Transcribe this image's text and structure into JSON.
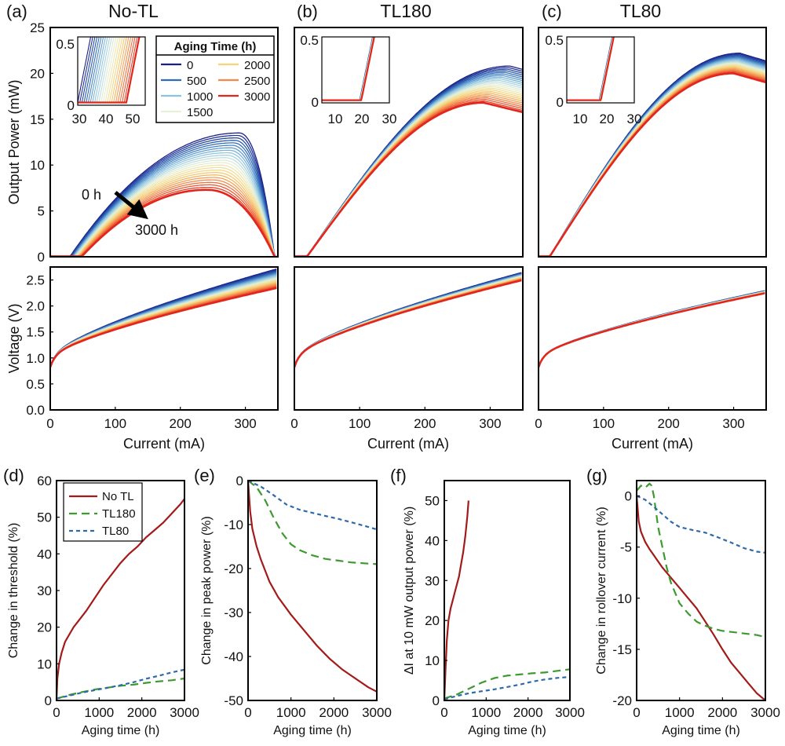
{
  "chart_data": [
    {
      "panel": "(a)",
      "title": "No-TL",
      "type": "line",
      "xlabel": "",
      "ylabel": "Output Power (mW)",
      "xlim": [
        0,
        350
      ],
      "ylim": [
        0,
        25
      ],
      "yticks": [
        0,
        5,
        10,
        15,
        20,
        25
      ],
      "aging_times_h": [
        0,
        500,
        1000,
        1500,
        2000,
        2500,
        3000
      ],
      "series_model": {
        "threshold_mA": [
          30,
          48
        ],
        "peak_mW": [
          13.5,
          7.3
        ],
        "peak_current_mA": [
          290,
          240
        ],
        "rolloff_to_zero_mA": 345
      },
      "annotations": [
        "0 h",
        "3000 h"
      ],
      "legend": {
        "title": "Aging Time (h)",
        "entries": [
          "0",
          "500",
          "1000",
          "1500",
          "2000",
          "2500",
          "3000"
        ],
        "placement": "top-right"
      },
      "inset": {
        "xlim": [
          30,
          55
        ],
        "ylim": [
          0,
          0.5
        ],
        "xticks": [
          30,
          40,
          50
        ],
        "yticks": [
          0,
          0.5
        ]
      }
    },
    {
      "panel": "(b)",
      "title": "TL180",
      "type": "line",
      "xlim": [
        0,
        350
      ],
      "ylim": [
        0,
        25
      ],
      "series_model": {
        "threshold_mA": [
          19,
          19
        ],
        "peak_mW": [
          20.8,
          16.8
        ],
        "peak_current_mA": [
          330,
          290
        ]
      },
      "inset": {
        "xlim": [
          5,
          30
        ],
        "ylim": [
          0,
          0.5
        ],
        "xticks": [
          10,
          20,
          30
        ],
        "yticks": [
          0,
          0.5
        ]
      }
    },
    {
      "panel": "(c)",
      "title": "TL80",
      "type": "line",
      "xlim": [
        0,
        350
      ],
      "ylim": [
        0,
        25
      ],
      "series_model": {
        "threshold_mA": [
          17,
          17
        ],
        "peak_mW": [
          22.2,
          20.0
        ],
        "peak_current_mA": [
          310,
          300
        ]
      },
      "inset": {
        "xlim": [
          5,
          30
        ],
        "ylim": [
          0,
          0.5
        ],
        "xticks": [
          10,
          20,
          30
        ],
        "yticks": [
          0,
          0.5
        ]
      }
    },
    {
      "panel": "(a) lower",
      "type": "line",
      "xlabel": "Current (mA)",
      "ylabel": "Voltage (V)",
      "xlim": [
        0,
        350
      ],
      "ylim": [
        0,
        2.75
      ],
      "xticks": [
        0,
        100,
        200,
        300
      ],
      "yticks": [
        0,
        0.5,
        1,
        1.5,
        2,
        2.5
      ],
      "ytick_labels": [
        "0.0",
        "0.5",
        "1.0",
        "1.5",
        "2.0",
        "2.5"
      ],
      "series_model": {
        "v_at_350mA": [
          2.72,
          2.35
        ]
      }
    },
    {
      "panel": "(b) lower",
      "type": "line",
      "xlabel": "Current (mA)",
      "xlim": [
        0,
        350
      ],
      "ylim": [
        0,
        2.75
      ],
      "xticks": [
        0,
        100,
        200,
        300
      ],
      "series_model": {
        "v_at_350mA": [
          2.65,
          2.5
        ]
      }
    },
    {
      "panel": "(c) lower",
      "type": "line",
      "xlabel": "Current (mA)",
      "xlim": [
        0,
        350
      ],
      "ylim": [
        0,
        2.75
      ],
      "xticks": [
        0,
        100,
        200,
        300
      ],
      "series_model": {
        "v_at_350mA": [
          2.3,
          2.25
        ]
      }
    },
    {
      "panel": "(d)",
      "type": "line",
      "xlabel": "Aging time (h)",
      "ylabel": "Change in threshold (%)",
      "xlim": [
        0,
        3000
      ],
      "ylim": [
        0,
        60
      ],
      "xticks": [
        0,
        1000,
        2000,
        3000
      ],
      "yticks": [
        0,
        10,
        20,
        30,
        40,
        50,
        60
      ],
      "legend_placement": "top-left",
      "series": [
        {
          "name": "No TL",
          "color": "#a31a1a",
          "style": "solid",
          "x": [
            0,
            20,
            60,
            120,
            200,
            300,
            400,
            500,
            700,
            900,
            1100,
            1300,
            1500,
            1700,
            1900,
            2100,
            2300,
            2500,
            2700,
            2900,
            3000
          ],
          "y": [
            0,
            6,
            10,
            13,
            16,
            18,
            20,
            21.5,
            24.5,
            28,
            31.5,
            34.5,
            37.5,
            40,
            42,
            44.5,
            46.5,
            48.5,
            51,
            53.5,
            55
          ]
        },
        {
          "name": "TL180",
          "color": "#3c9a2e",
          "style": "dash",
          "x": [
            0,
            300,
            600,
            900,
            1200,
            1500,
            1800,
            2100,
            2400,
            2700,
            3000
          ],
          "y": [
            0.5,
            1.5,
            2.3,
            3,
            3.5,
            4,
            4.3,
            4.8,
            5.2,
            5.5,
            6
          ]
        },
        {
          "name": "TL80",
          "color": "#2e6aa8",
          "style": "short-dash",
          "x": [
            0,
            300,
            600,
            900,
            1200,
            1500,
            1800,
            2100,
            2400,
            2700,
            3000
          ],
          "y": [
            0.5,
            1.2,
            2,
            2.8,
            3.6,
            4.3,
            5,
            5.8,
            6.6,
            7.6,
            8.5
          ]
        }
      ]
    },
    {
      "panel": "(e)",
      "type": "line",
      "xlabel": "Aging time (h)",
      "ylabel": "Change in peak power (%)",
      "xlim": [
        0,
        3000
      ],
      "ylim": [
        -50,
        0
      ],
      "xticks": [
        0,
        1000,
        2000,
        3000
      ],
      "yticks": [
        0,
        -10,
        -20,
        -30,
        -40,
        -50
      ],
      "series": [
        {
          "name": "No TL",
          "color": "#a31a1a",
          "style": "solid",
          "x": [
            0,
            50,
            100,
            200,
            300,
            500,
            700,
            1000,
            1300,
            1600,
            1900,
            2200,
            2500,
            2800,
            3000
          ],
          "y": [
            0,
            -7,
            -11,
            -15,
            -18,
            -23,
            -26.5,
            -30.5,
            -34,
            -37.5,
            -40.5,
            -43,
            -45,
            -47,
            -48
          ]
        },
        {
          "name": "TL180",
          "color": "#3c9a2e",
          "style": "dash",
          "x": [
            0,
            200,
            400,
            600,
            800,
            1000,
            1200,
            1500,
            1800,
            2100,
            2400,
            2700,
            3000
          ],
          "y": [
            0,
            -1.5,
            -4.5,
            -8.5,
            -12,
            -14.5,
            -15.8,
            -17,
            -17.8,
            -18.2,
            -18.6,
            -18.8,
            -19
          ]
        },
        {
          "name": "TL80",
          "color": "#2e6aa8",
          "style": "short-dash",
          "x": [
            0,
            300,
            600,
            900,
            1200,
            1500,
            1800,
            2100,
            2400,
            2700,
            3000
          ],
          "y": [
            0,
            -1.5,
            -3.5,
            -5.5,
            -6.5,
            -7.2,
            -8,
            -8.8,
            -9.6,
            -10.3,
            -11
          ]
        }
      ]
    },
    {
      "panel": "(f)",
      "type": "line",
      "xlabel": "Aging time (h)",
      "ylabel": "ΔI at 10 mW output power (%)",
      "xlim": [
        0,
        3000
      ],
      "ylim": [
        0,
        55
      ],
      "xticks": [
        0,
        1000,
        2000,
        3000
      ],
      "yticks": [
        0,
        10,
        20,
        30,
        40,
        50
      ],
      "series": [
        {
          "name": "No TL",
          "color": "#a31a1a",
          "style": "solid",
          "x": [
            0,
            30,
            60,
            100,
            150,
            200,
            250,
            300,
            350,
            400,
            450,
            500,
            550,
            580
          ],
          "y": [
            0,
            8,
            15,
            20,
            23,
            25,
            27,
            29,
            31,
            34,
            37,
            41,
            46,
            50
          ]
        },
        {
          "name": "TL180",
          "color": "#3c9a2e",
          "style": "dash",
          "x": [
            0,
            300,
            600,
            900,
            1200,
            1500,
            1800,
            2100,
            2400,
            2700,
            3000
          ],
          "y": [
            0.5,
            1.5,
            3,
            4.5,
            5.6,
            6.2,
            6.5,
            6.8,
            7,
            7.4,
            7.8
          ]
        },
        {
          "name": "TL80",
          "color": "#2e6aa8",
          "style": "short-dash",
          "x": [
            0,
            300,
            600,
            900,
            1200,
            1500,
            1800,
            2100,
            2400,
            2700,
            3000
          ],
          "y": [
            0.3,
            1,
            1.7,
            2.3,
            2.9,
            3.5,
            4,
            4.6,
            5.1,
            5.6,
            6
          ]
        }
      ]
    },
    {
      "panel": "(g)",
      "type": "line",
      "xlabel": "Aging time (h)",
      "ylabel": "Change in rollover current (%)",
      "xlim": [
        0,
        3000
      ],
      "ylim": [
        -20,
        1.5
      ],
      "xticks": [
        0,
        1000,
        2000,
        3000
      ],
      "yticks": [
        0,
        -5,
        -10,
        -15,
        -20
      ],
      "series": [
        {
          "name": "No TL",
          "color": "#a31a1a",
          "style": "solid",
          "x": [
            0,
            50,
            100,
            200,
            300,
            400,
            500,
            600,
            800,
            1000,
            1200,
            1400,
            1600,
            1800,
            2000,
            2200,
            2400,
            2600,
            2800,
            3000
          ],
          "y": [
            0,
            -2.5,
            -3.5,
            -4.5,
            -5.2,
            -5.8,
            -6.4,
            -7,
            -8,
            -9,
            -10,
            -11,
            -12.3,
            -13.6,
            -15,
            -16.3,
            -17.3,
            -18.3,
            -19.3,
            -20
          ]
        },
        {
          "name": "TL180",
          "color": "#3c9a2e",
          "style": "dash",
          "x": [
            0,
            100,
            200,
            300,
            350,
            400,
            450,
            500,
            600,
            700,
            800,
            1000,
            1200,
            1400,
            1600,
            1800,
            2000,
            2200,
            2400,
            2600,
            2800,
            3000
          ],
          "y": [
            0.5,
            1,
            0.8,
            1.2,
            1,
            0,
            -1.5,
            -3,
            -5,
            -7,
            -8.5,
            -10.5,
            -11.5,
            -12.3,
            -12.7,
            -13,
            -13.2,
            -13.3,
            -13.4,
            -13.5,
            -13.6,
            -13.8
          ]
        },
        {
          "name": "TL80",
          "color": "#2e6aa8",
          "style": "short-dash",
          "x": [
            0,
            200,
            400,
            600,
            800,
            1000,
            1300,
            1600,
            1900,
            2200,
            2500,
            2800,
            3000
          ],
          "y": [
            0,
            -0.5,
            -1.2,
            -1.8,
            -2.4,
            -2.9,
            -3.3,
            -3.7,
            -4.2,
            -4.6,
            -5,
            -5.3,
            -5.5
          ]
        }
      ]
    }
  ]
}
